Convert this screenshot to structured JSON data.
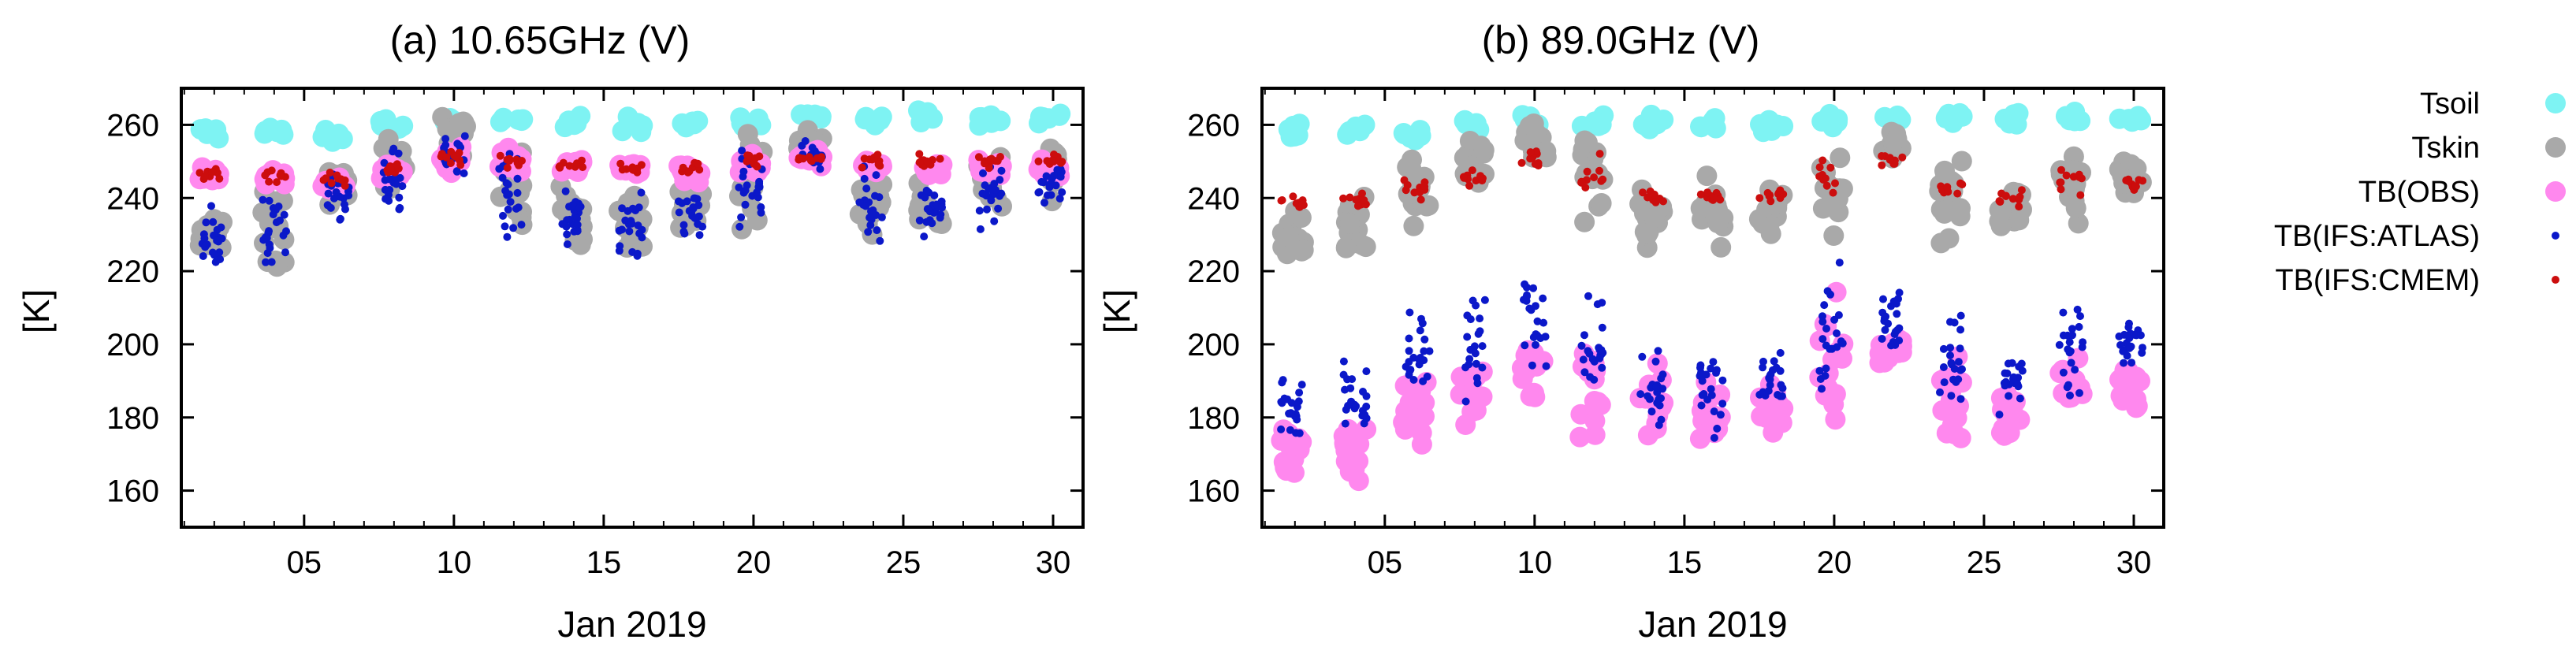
{
  "chart_data": [
    {
      "type": "scatter",
      "title": "(a) 10.65GHz (V)",
      "xlabel": "Jan 2019",
      "ylabel": "[K]",
      "xlim": [
        0.9,
        31.0
      ],
      "ylim": [
        150,
        270
      ],
      "x_ticks": [
        5,
        10,
        15,
        20,
        25,
        30
      ],
      "x_tick_labels": [
        "05",
        "10",
        "15",
        "20",
        "25",
        "30"
      ],
      "y_ticks": [
        160,
        180,
        200,
        220,
        240,
        260
      ],
      "y_tick_labels": [
        "160",
        "180",
        "200",
        "220",
        "240",
        "260"
      ],
      "series": [
        {
          "name": "Tsoil",
          "color": "#7ef3f3",
          "x": [
            1.9,
            4.0,
            6.0,
            7.9,
            9.9,
            11.9,
            13.9,
            15.9,
            17.9,
            19.9,
            21.9,
            23.9,
            25.9,
            27.9,
            29.9
          ],
          "y": [
            258,
            258,
            257,
            260,
            261,
            261,
            260,
            260,
            260,
            261,
            262,
            262,
            262,
            262,
            262
          ],
          "spread": [
            2,
            2,
            2,
            2,
            2,
            2,
            2,
            2,
            2,
            2,
            2,
            2,
            2,
            2,
            2
          ]
        },
        {
          "name": "Tskin",
          "color": "#a9a9a9",
          "x": [
            1.9,
            4.0,
            6.1,
            8.0,
            10.0,
            11.9,
            13.9,
            15.9,
            17.9,
            19.9,
            21.9,
            23.9,
            25.9,
            27.9,
            29.9
          ],
          "y": [
            230,
            233,
            244,
            250,
            255,
            245,
            235,
            235,
            238,
            245,
            254,
            240,
            238,
            243,
            248
          ],
          "spread": [
            6,
            9,
            8,
            8,
            6,
            12,
            8,
            9,
            7,
            11,
            4,
            10,
            8,
            9,
            6
          ]
        },
        {
          "name": "TB(OBS)",
          "color": "#ff88ee",
          "x": [
            1.9,
            4.0,
            6.0,
            7.9,
            9.9,
            11.9,
            13.9,
            15.9,
            17.9,
            19.9,
            21.9,
            23.9,
            25.9,
            27.9,
            29.9
          ],
          "y": [
            246,
            246,
            244,
            247,
            250,
            250,
            249,
            248,
            247,
            249,
            251,
            249,
            248,
            248,
            248
          ],
          "spread": [
            2,
            2,
            2,
            2,
            3,
            3,
            2,
            2,
            2,
            3,
            2,
            2,
            2,
            2,
            2
          ]
        },
        {
          "name": "TB(IFS:ATLAS)",
          "color": "#0b18c9",
          "x": [
            1.9,
            4.0,
            6.1,
            8.0,
            10.0,
            11.9,
            13.9,
            15.9,
            17.9,
            19.9,
            21.9,
            23.9,
            25.9,
            27.9,
            29.9
          ],
          "y": [
            229,
            232,
            240,
            245,
            250,
            242,
            234,
            233,
            236,
            244,
            252,
            238,
            237,
            242,
            244
          ],
          "spread": [
            6,
            9,
            7,
            8,
            6,
            12,
            7,
            9,
            6,
            10,
            3,
            9,
            7,
            9,
            5
          ]
        },
        {
          "name": "TB(IFS:CMEM)",
          "color": "#cc0d0d",
          "x": [
            1.9,
            4.0,
            6.0,
            7.9,
            9.9,
            11.9,
            13.9,
            15.9,
            17.9,
            19.9,
            21.9,
            23.9,
            25.9,
            27.9,
            29.9
          ],
          "y": [
            246,
            246,
            245,
            248,
            251,
            250,
            249,
            248,
            248,
            250,
            251,
            250,
            250,
            250,
            250
          ],
          "spread": [
            1.5,
            1.5,
            1.5,
            2,
            2,
            2,
            1.5,
            1.5,
            1.5,
            2,
            1.5,
            1.5,
            1.5,
            1.5,
            1.5
          ]
        }
      ]
    },
    {
      "type": "scatter",
      "title": "(b) 89.0GHz (V)",
      "xlabel": "Jan 2019",
      "ylabel": "[K]",
      "xlim": [
        0.9,
        31.0
      ],
      "ylim": [
        150,
        270
      ],
      "x_ticks": [
        5,
        10,
        15,
        20,
        25,
        30
      ],
      "x_tick_labels": [
        "05",
        "10",
        "15",
        "20",
        "25",
        "30"
      ],
      "y_ticks": [
        160,
        180,
        200,
        220,
        240,
        260
      ],
      "y_tick_labels": [
        "160",
        "180",
        "200",
        "220",
        "240",
        "260"
      ],
      "series": [
        {
          "name": "Tsoil",
          "color": "#7ef3f3",
          "x": [
            1.9,
            4.0,
            6.0,
            7.9,
            9.9,
            11.9,
            13.9,
            15.9,
            17.9,
            19.9,
            21.9,
            23.9,
            25.9,
            27.9,
            29.9
          ],
          "y": [
            258,
            258,
            257,
            260,
            261,
            261,
            260,
            260,
            260,
            261,
            262,
            262,
            262,
            262,
            262
          ],
          "spread": [
            2,
            2,
            2,
            2,
            2,
            2,
            2,
            2,
            2,
            2,
            2,
            2,
            2,
            2,
            2
          ]
        },
        {
          "name": "Tskin",
          "color": "#a9a9a9",
          "x": [
            1.9,
            4.0,
            6.1,
            8.0,
            10.0,
            11.9,
            13.9,
            15.9,
            17.9,
            19.9,
            21.9,
            23.9,
            25.9,
            27.9,
            29.9
          ],
          "y": [
            230,
            232,
            244,
            250,
            255,
            245,
            235,
            235,
            238,
            245,
            254,
            240,
            238,
            243,
            246
          ],
          "spread": [
            5,
            8,
            8,
            8,
            6,
            12,
            8,
            9,
            7,
            12,
            4,
            10,
            8,
            9,
            5
          ]
        },
        {
          "name": "TB(OBS)",
          "color": "#ff88ee",
          "x": [
            1.9,
            4.0,
            6.0,
            7.9,
            9.9,
            11.9,
            13.9,
            15.9,
            17.9,
            19.9,
            21.9,
            23.9,
            25.9,
            27.9,
            29.9
          ],
          "y": [
            172,
            172,
            182,
            188,
            195,
            190,
            183,
            180,
            183,
            195,
            198,
            183,
            180,
            188,
            188
          ],
          "spread": [
            7,
            8,
            9,
            9,
            7,
            12,
            9,
            10,
            7,
            14,
            5,
            10,
            7,
            9,
            6
          ]
        },
        {
          "name": "TB(IFS:ATLAS)",
          "color": "#0b18c9",
          "x": [
            1.9,
            4.0,
            6.1,
            8.0,
            10.0,
            11.9,
            13.9,
            15.9,
            17.9,
            19.9,
            21.9,
            23.9,
            25.9,
            27.9,
            29.9
          ],
          "y": [
            183,
            185,
            195,
            198,
            208,
            198,
            188,
            187,
            190,
            203,
            207,
            195,
            190,
            198,
            200
          ],
          "spread": [
            8,
            9,
            10,
            12,
            11,
            13,
            8,
            10,
            7,
            16,
            7,
            12,
            8,
            12,
            5
          ]
        },
        {
          "name": "TB(IFS:CMEM)",
          "color": "#cc0d0d",
          "x": [
            1.9,
            4.0,
            6.0,
            7.9,
            9.9,
            11.9,
            13.9,
            15.9,
            17.9,
            19.9,
            21.9,
            23.9,
            25.9,
            27.9,
            29.9
          ],
          "y": [
            239,
            239,
            243,
            245,
            250,
            246,
            240,
            240,
            241,
            246,
            250,
            242,
            240,
            245,
            244
          ],
          "spread": [
            2,
            2,
            3,
            3,
            3,
            4,
            2,
            2,
            2,
            4,
            2,
            3,
            2,
            3,
            2
          ]
        }
      ]
    }
  ],
  "legend": {
    "placement": "right",
    "items": [
      {
        "label": "Tsoil",
        "color": "#7ef3f3"
      },
      {
        "label": "Tskin",
        "color": "#a9a9a9"
      },
      {
        "label": "TB(OBS)",
        "color": "#ff88ee"
      },
      {
        "label": "TB(IFS:ATLAS)",
        "color": "#0b18c9"
      },
      {
        "label": "TB(IFS:CMEM)",
        "color": "#cc0d0d"
      }
    ]
  }
}
